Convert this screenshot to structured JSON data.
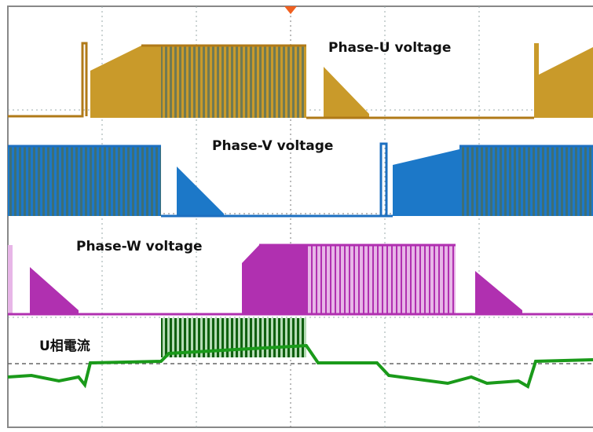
{
  "labels": {
    "phase_u": "Phase-U voltage",
    "phase_v": "Phase-V voltage",
    "phase_w": "Phase-W voltage",
    "u_current": "U相電流"
  }
}
